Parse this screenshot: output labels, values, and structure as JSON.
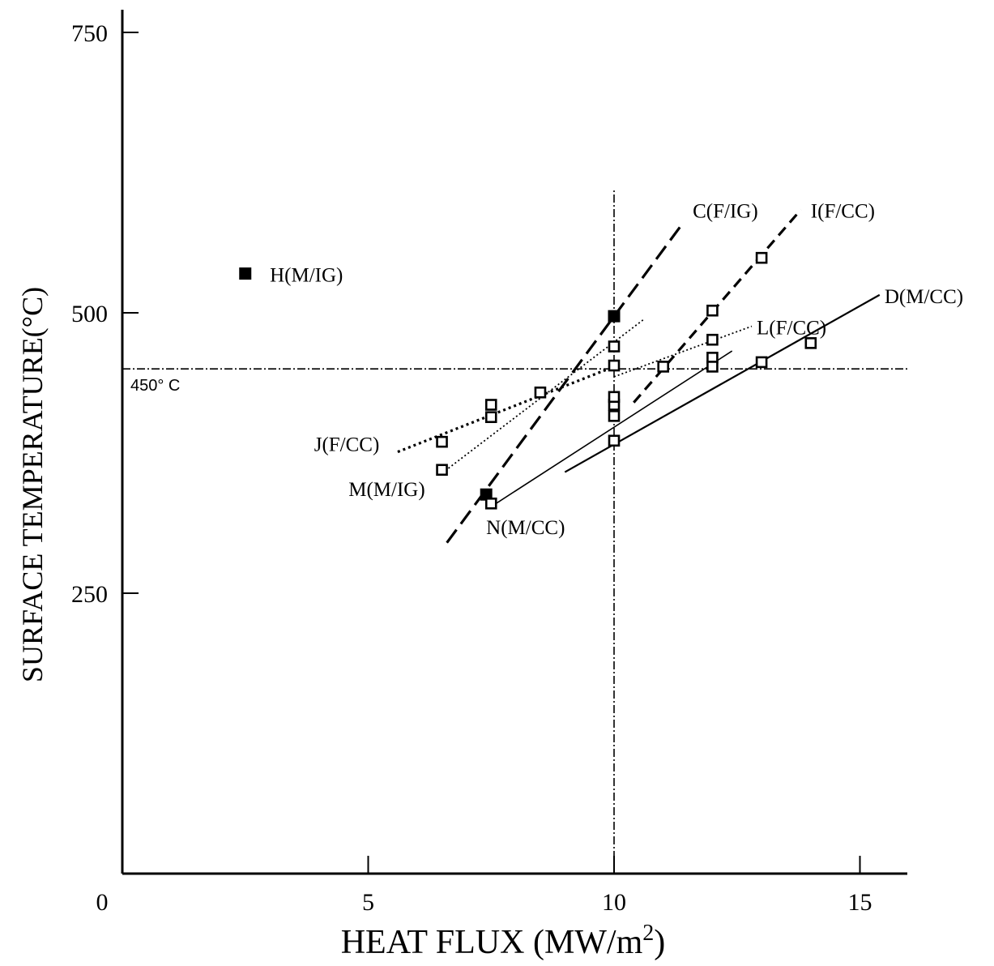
{
  "chart_data": {
    "type": "scatter",
    "xlabel": "HEAT FLUX (MW/m",
    "xlabel_sup": "2",
    "xlabel_close": ")",
    "ylabel": "SURFACE  TEMPERATURE(°C)",
    "xlim": [
      0,
      16
    ],
    "ylim": [
      0,
      750
    ],
    "x_ticks": [
      {
        "value": 5,
        "label": "5"
      },
      {
        "value": 10,
        "label": "10"
      },
      {
        "value": 15,
        "label": "15"
      }
    ],
    "x_origin_label": "0",
    "y_ticks": [
      {
        "value": 250,
        "label": "250"
      },
      {
        "value": 500,
        "label": "500"
      },
      {
        "value": 750,
        "label": "750"
      }
    ],
    "reference_lines": [
      {
        "axis": "y",
        "value": 450,
        "label": "450° C",
        "style": "dashdot"
      },
      {
        "axis": "x",
        "value": 10,
        "label": "",
        "style": "dashdot"
      }
    ],
    "series": [
      {
        "name": "H(M/IG)",
        "marker": "filled-square",
        "line": "none",
        "points": [
          [
            2.5,
            535
          ]
        ],
        "fit": null,
        "label_at": [
          3.0,
          535
        ]
      },
      {
        "name": "C(F/IG)",
        "marker": "filled-square",
        "line": "long-dash",
        "points": [
          [
            7.4,
            338
          ],
          [
            10.0,
            497
          ]
        ],
        "fit": [
          [
            6.6,
            295
          ],
          [
            11.4,
            580
          ]
        ],
        "label_at": [
          11.6,
          592
        ]
      },
      {
        "name": "I(F/CC)",
        "marker": "open-square",
        "line": "dash",
        "points": [
          [
            10.0,
            418
          ],
          [
            12.0,
            502
          ],
          [
            13.0,
            549
          ]
        ],
        "fit": [
          [
            10.4,
            420
          ],
          [
            13.8,
            592
          ]
        ],
        "label_at": [
          14.0,
          592
        ]
      },
      {
        "name": "D(M/CC)",
        "marker": "open-square",
        "line": "solid",
        "points": [
          [
            10.0,
            386
          ],
          [
            13.0,
            456
          ],
          [
            14.0,
            473
          ]
        ],
        "fit": [
          [
            9.0,
            358
          ],
          [
            15.4,
            516
          ]
        ],
        "label_at": [
          15.5,
          516
        ]
      },
      {
        "name": "L(F/CC)",
        "marker": "open-square",
        "line": "fine-dot",
        "points": [
          [
            10.0,
            453
          ],
          [
            11.0,
            452
          ],
          [
            12.0,
            460
          ],
          [
            12.0,
            476
          ]
        ],
        "fit": [
          [
            10.0,
            443
          ],
          [
            12.8,
            488
          ]
        ],
        "label_at": [
          12.9,
          488
        ]
      },
      {
        "name": "J(F/CC)",
        "marker": "open-square",
        "line": "dot",
        "points": [
          [
            6.5,
            385
          ],
          [
            7.5,
            407
          ],
          [
            8.5,
            429
          ]
        ],
        "fit": [
          [
            5.6,
            376
          ],
          [
            10.0,
            452
          ]
        ],
        "label_at": [
          3.9,
          384
        ]
      },
      {
        "name": "M(M/IG)",
        "marker": "open-square",
        "line": "fine-dot",
        "points": [
          [
            6.5,
            360
          ],
          [
            7.5,
            418
          ],
          [
            10.0,
            470
          ]
        ],
        "fit": [
          [
            6.5,
            357
          ],
          [
            10.6,
            494
          ]
        ],
        "label_at": [
          4.6,
          344
        ]
      },
      {
        "name": "N(M/CC)",
        "marker": "open-square",
        "line": "thin-solid",
        "points": [
          [
            7.5,
            330
          ],
          [
            10.0,
            408
          ],
          [
            10.0,
            425
          ],
          [
            12.0,
            452
          ]
        ],
        "fit": [
          [
            7.6,
            330
          ],
          [
            12.4,
            466
          ]
        ],
        "label_at": [
          7.4,
          310
        ]
      }
    ]
  }
}
